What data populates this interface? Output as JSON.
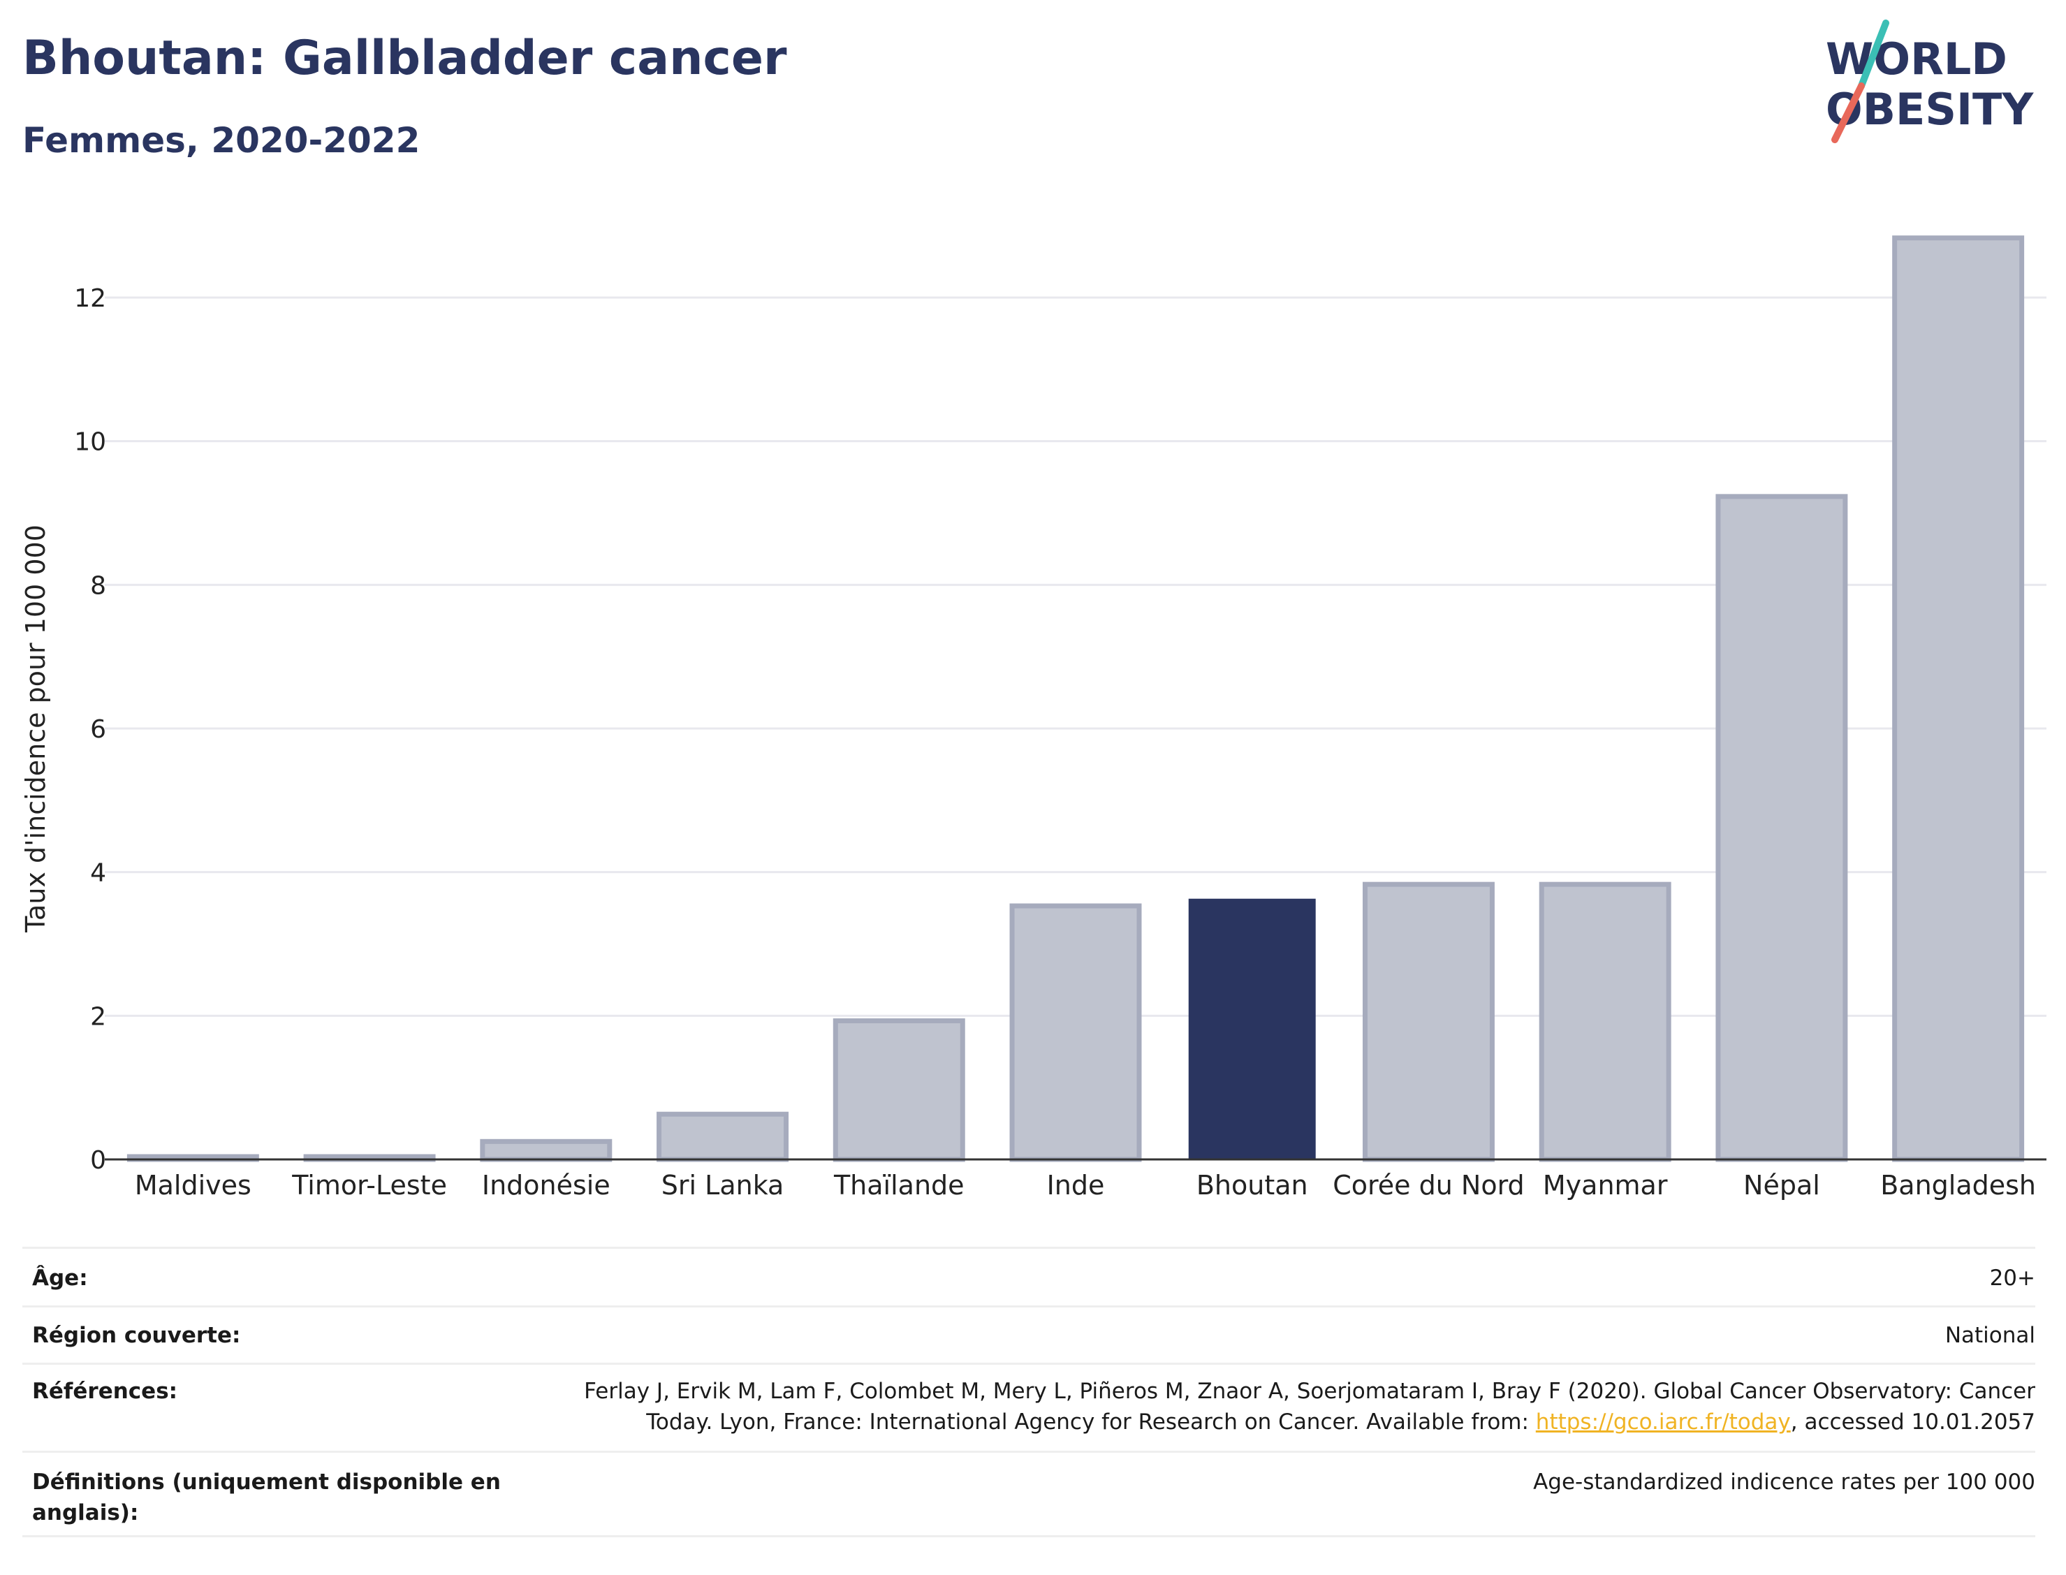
{
  "header": {
    "title": "Bhoutan: Gallbladder cancer",
    "subtitle": "Femmes, 2020-2022"
  },
  "logo": {
    "line1": "WORLD",
    "line2": "OBESITY",
    "colors": {
      "text": "#2a3560",
      "slash_top": "#3bbfb5",
      "slash_bottom": "#e8685a"
    }
  },
  "chart_data": {
    "type": "bar",
    "ylabel": "Taux d'incidence pour 100 000",
    "xlabel": "",
    "ylim": [
      0,
      13
    ],
    "yticks": [
      0,
      2,
      4,
      6,
      8,
      10,
      12
    ],
    "grid": true,
    "categories": [
      "Maldives",
      "Timor-Leste",
      "Indonésie",
      "Sri Lanka",
      "Thaïlande",
      "Inde",
      "Bhoutan",
      "Corée du Nord",
      "Myanmar",
      "Népal",
      "Bangladesh"
    ],
    "values": [
      0.02,
      0.02,
      0.25,
      0.63,
      1.93,
      3.53,
      3.63,
      3.83,
      3.83,
      9.23,
      12.83
    ],
    "highlight": "Bhoutan",
    "colors": {
      "highlight": "#2a3560",
      "default_fill": "#bfc3cf",
      "default_stroke": "#a6abbd"
    }
  },
  "meta": {
    "age_label": "Âge:",
    "age_value": "20+",
    "region_label": "Région couverte:",
    "region_value": "National",
    "refs_label": "Références:",
    "refs_line1": "Ferlay J, Ervik M, Lam F, Colombet M, Mery L, Piñeros M, Znaor A, Soerjomataram I, Bray F (2020). Global Cancer Observatory: Cancer",
    "refs_line2_pre": "Today. Lyon, France: International Agency for Research on Cancer. Available from: ",
    "refs_link": "https://gco.iarc.fr/today",
    "refs_line2_post": ", accessed 10.01.2057",
    "defs_label": "Définitions (uniquement disponible en anglais):",
    "defs_value": "Age-standardized indicence rates per 100 000"
  }
}
